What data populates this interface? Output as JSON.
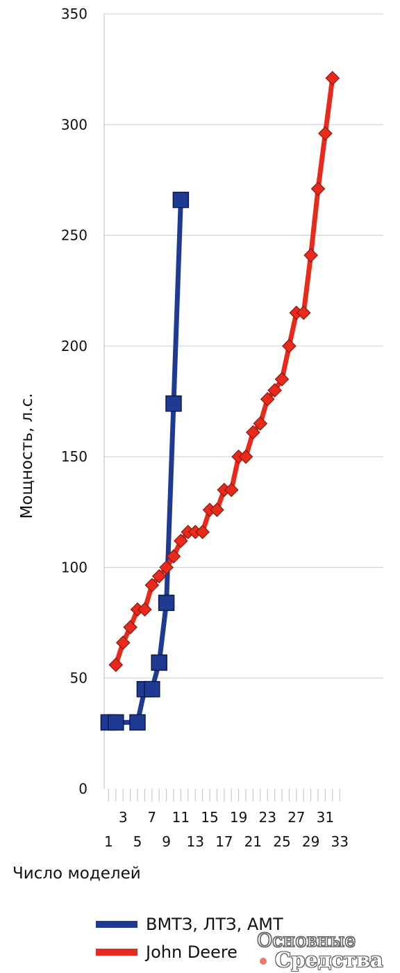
{
  "chart_data": {
    "type": "line",
    "ylabel": "Мощность, л.с.",
    "xlabel": "Число моделей",
    "ylim": [
      0,
      350
    ],
    "yticks": [
      0,
      50,
      100,
      150,
      200,
      250,
      300,
      350
    ],
    "xlim": [
      1,
      33
    ],
    "xticks_row1": [
      3,
      7,
      11,
      15,
      19,
      23,
      27,
      31
    ],
    "xticks_row2": [
      1,
      5,
      9,
      13,
      17,
      21,
      25,
      29,
      33
    ],
    "grid": true,
    "legend_placement": "bottom",
    "series": [
      {
        "name": "ВМТЗ, ЛТЗ, АМТ",
        "color": "#1f3a93",
        "marker": "square",
        "x": [
          1,
          2,
          5,
          6,
          7,
          8,
          9,
          10,
          11
        ],
        "y": [
          30,
          30,
          30,
          45,
          45,
          57,
          84,
          174,
          266
        ]
      },
      {
        "name": "John Deere",
        "color": "#e8291c",
        "marker": "diamond",
        "x": [
          2,
          3,
          4,
          5,
          6,
          7,
          8,
          9,
          10,
          11,
          12,
          13,
          14,
          15,
          16,
          17,
          18,
          19,
          20,
          21,
          22,
          23,
          24,
          25,
          26,
          27,
          28,
          29,
          30,
          31,
          32
        ],
        "y": [
          56,
          66,
          73,
          81,
          81,
          92,
          96,
          100,
          105,
          112,
          116,
          116,
          116,
          126,
          126,
          135,
          135,
          150,
          150,
          161,
          165,
          176,
          180,
          185,
          200,
          215,
          215,
          241,
          271,
          296,
          321
        ]
      }
    ]
  },
  "legend": {
    "items": [
      {
        "label": "ВМТЗ, ЛТЗ, АМТ",
        "color": "#1f3a93"
      },
      {
        "label": "John Deere",
        "color": "#e8291c"
      }
    ]
  },
  "watermark": {
    "line1": "Основные",
    "line2": "Средства"
  }
}
